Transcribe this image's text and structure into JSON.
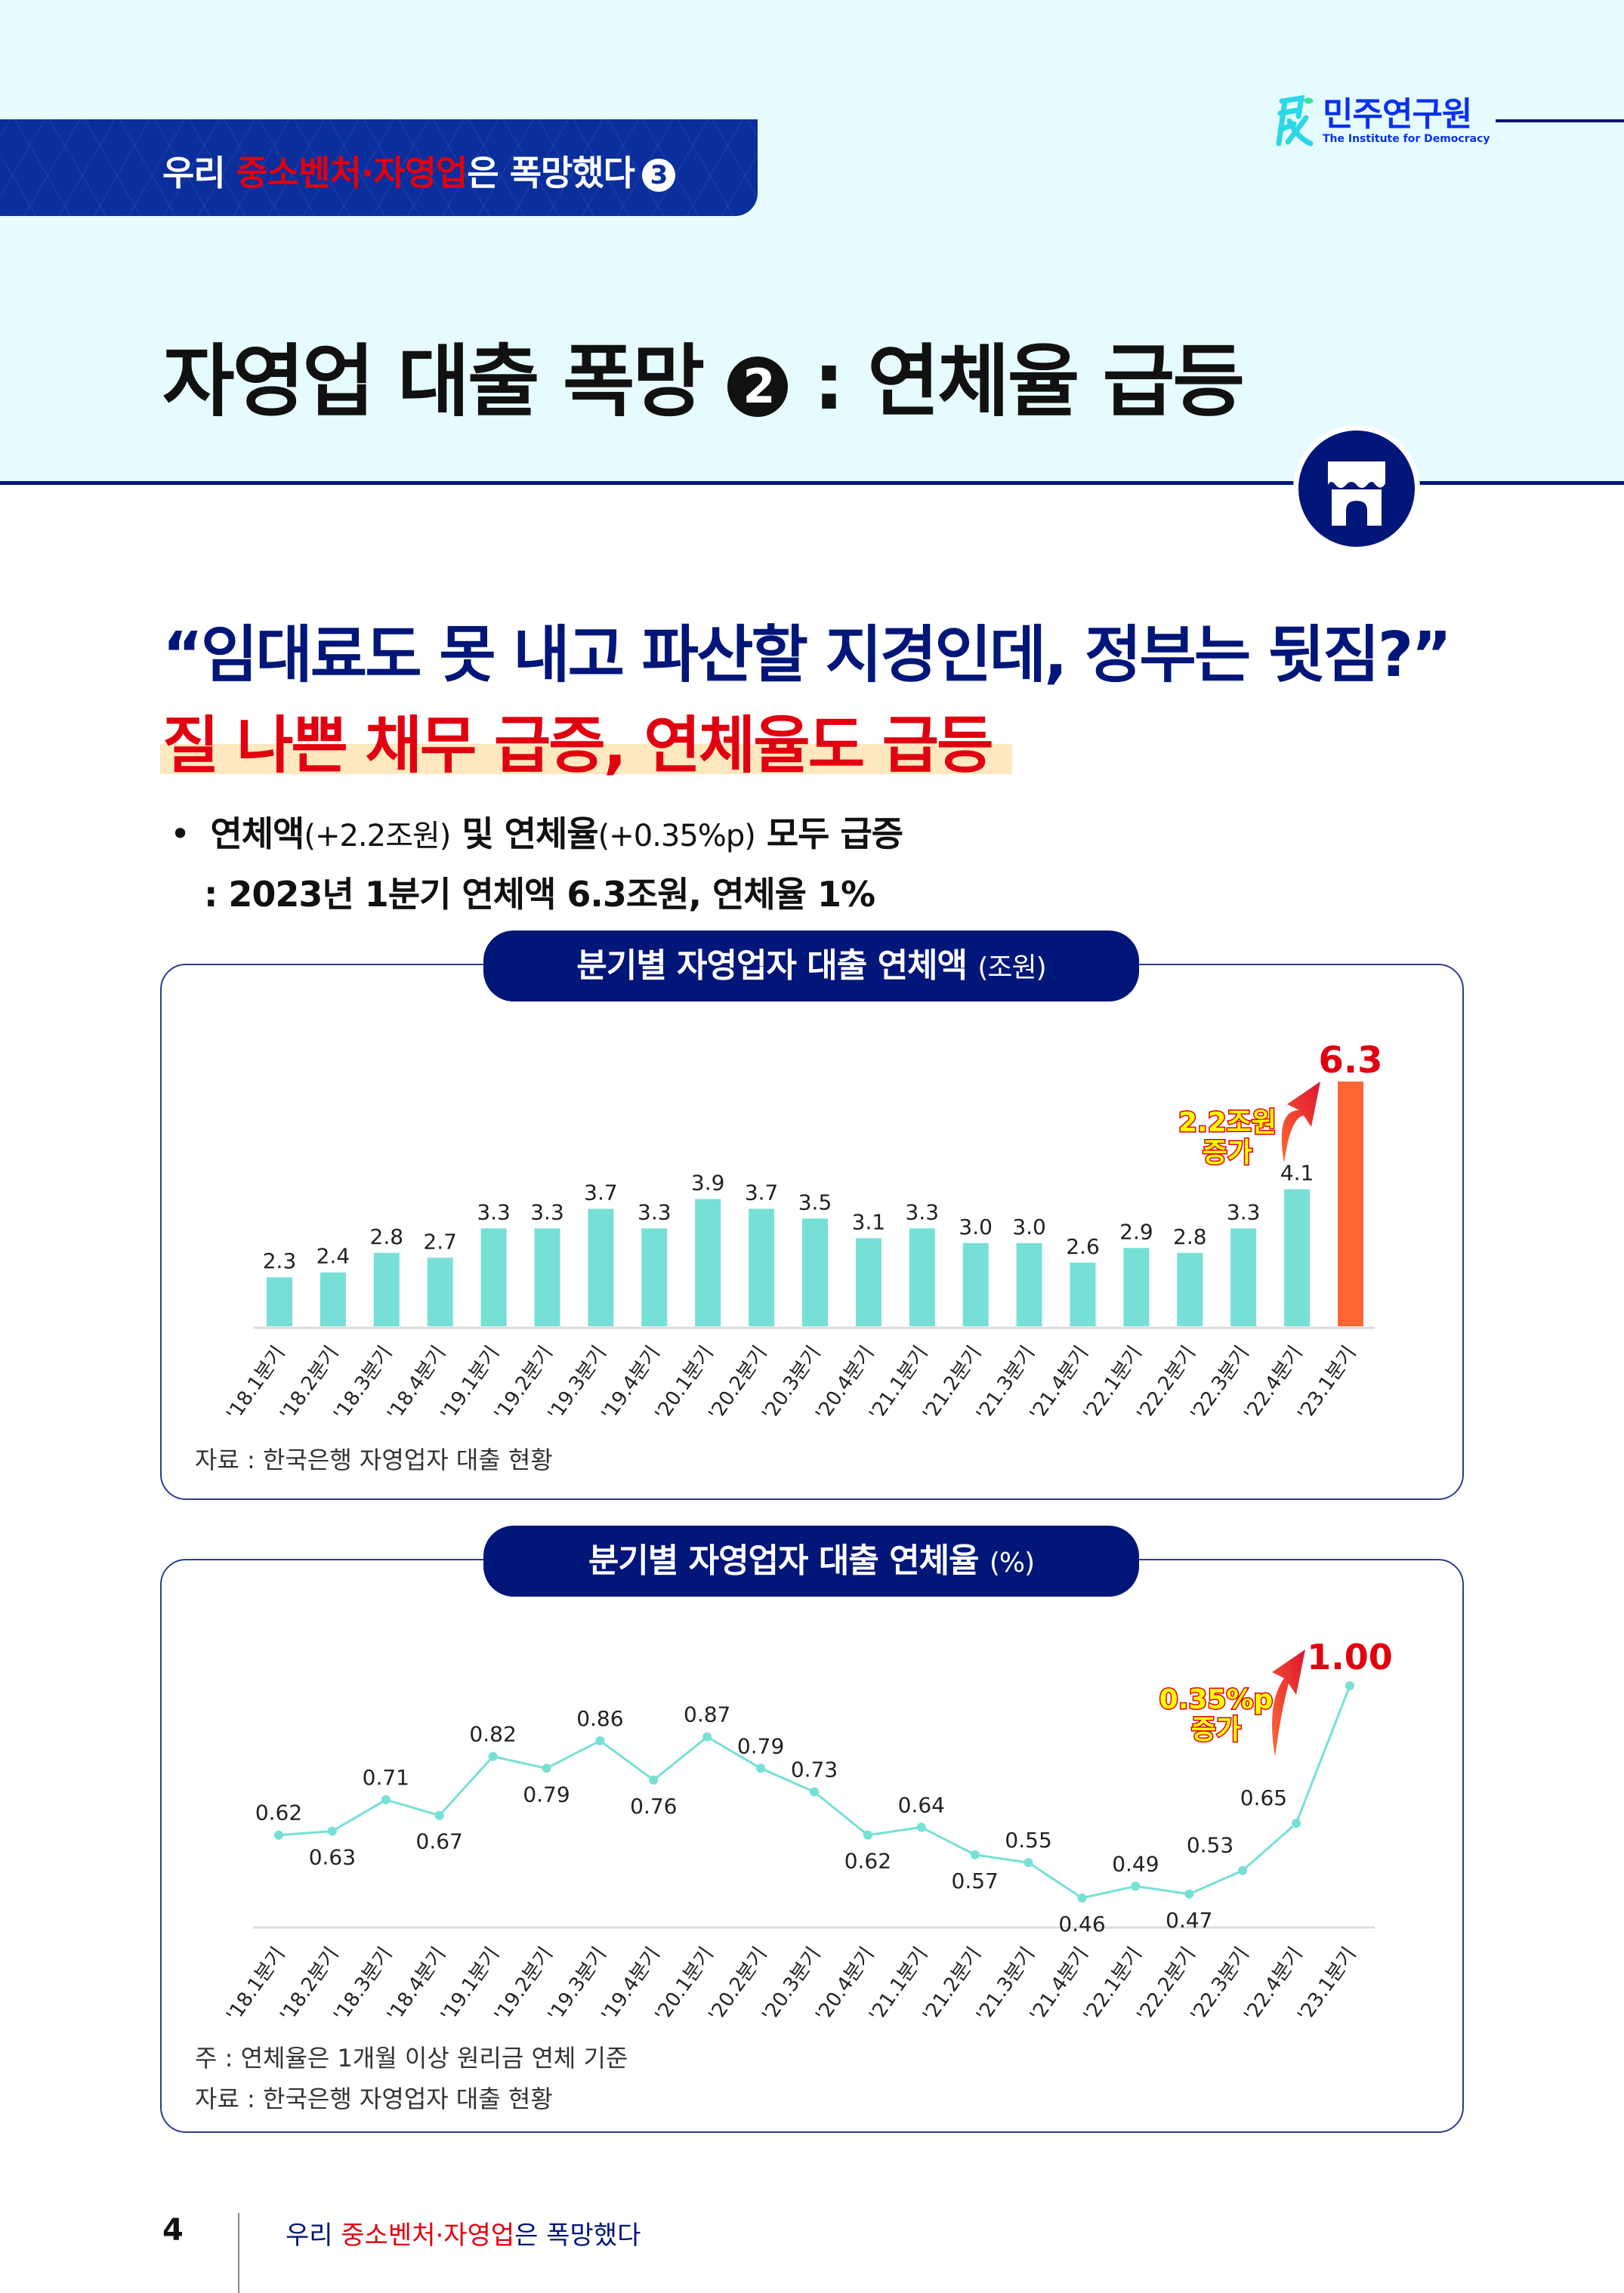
{
  "header": {
    "series_title_prefix": "우리 ",
    "series_title_highlight": "중소벤처·자영업",
    "series_title_suffix": "은 폭망했다",
    "series_number": "3",
    "logo_ko": "민주연구원",
    "logo_en": "The Institute for Democracy",
    "logo_icon": "min-character-icon",
    "page_title_part1": "자영업 대출 폭망",
    "page_title_number": "2",
    "page_title_part2": ": 연체율 급등",
    "badge_icon": "storefront-icon"
  },
  "main": {
    "quote": "“임대료도 못 내고 파산할 지경인데, 정부는 뒷짐?”",
    "headline": "질 나쁜 채무 급증, 연체율도 급등",
    "bullet_marker": "•",
    "bullet_line1_a": "연체액",
    "bullet_line1_b": "(+2.2조원)",
    "bullet_line1_c": " 및 연체율",
    "bullet_line1_d": "(+0.35%p)",
    "bullet_line1_e": " 모두 급증",
    "bullet_line2": ":  2023년 1분기 연체액 6.3조원, 연체율 1%"
  },
  "colors": {
    "navy": "#011679",
    "red": "#e1000f",
    "teal": "#76e0d6",
    "orange": "#ff6633",
    "callout_yellow": "#ffff00"
  },
  "chart_data": [
    {
      "type": "bar",
      "title": "분기별 자영업자 대출 연체액",
      "unit": "(조원)",
      "categories": [
        "'18.1분기",
        "'18.2분기",
        "'18.3분기",
        "'18.4분기",
        "'19.1분기",
        "'19.2분기",
        "'19.3분기",
        "'19.4분기",
        "'20.1분기",
        "'20.2분기",
        "'20.3분기",
        "'20.4분기",
        "'21.1분기",
        "'21.2분기",
        "'21.3분기",
        "'21.4분기",
        "'22.1분기",
        "'22.2분기",
        "'22.3분기",
        "'22.4분기",
        "'23.1분기"
      ],
      "values": [
        2.3,
        2.4,
        2.8,
        2.7,
        3.3,
        3.3,
        3.7,
        3.3,
        3.9,
        3.7,
        3.5,
        3.1,
        3.3,
        3.0,
        3.0,
        2.6,
        2.9,
        2.8,
        3.3,
        4.1,
        6.3
      ],
      "labels": [
        "2.3",
        "2.4",
        "2.8",
        "2.7",
        "3.3",
        "3.3",
        "3.7",
        "3.3",
        "3.9",
        "3.7",
        "3.5",
        "3.1",
        "3.3",
        "3.0",
        "3.0",
        "2.6",
        "2.9",
        "2.8",
        "3.3",
        "4.1",
        "6.3"
      ],
      "highlight_index": 20,
      "ylim": [
        1.3,
        6.3
      ],
      "xlabel": "",
      "ylabel": "",
      "grid": false,
      "callout": [
        "2.2조원",
        "증가"
      ],
      "source": "자료 : 한국은행 자영업자 대출 현황"
    },
    {
      "type": "line",
      "title": "분기별 자영업자 대출 연체율",
      "unit": "(%)",
      "categories": [
        "'18.1분기",
        "'18.2분기",
        "'18.3분기",
        "'18.4분기",
        "'19.1분기",
        "'19.2분기",
        "'19.3분기",
        "'19.4분기",
        "'20.1분기",
        "'20.2분기",
        "'20.3분기",
        "'20.4분기",
        "'21.1분기",
        "'21.2분기",
        "'21.3분기",
        "'21.4분기",
        "'22.1분기",
        "'22.2분기",
        "'22.3분기",
        "'22.4분기",
        "'23.1분기"
      ],
      "values": [
        0.62,
        0.63,
        0.71,
        0.67,
        0.82,
        0.79,
        0.86,
        0.76,
        0.87,
        0.79,
        0.73,
        0.62,
        0.64,
        0.57,
        0.55,
        0.46,
        0.49,
        0.47,
        0.53,
        0.65,
        1.0
      ],
      "labels": [
        "0.62",
        "0.63",
        "0.71",
        "0.67",
        "0.82",
        "0.79",
        "0.86",
        "0.76",
        "0.87",
        "0.79",
        "0.73",
        "0.62",
        "0.64",
        "0.57",
        "0.55",
        "0.46",
        "0.49",
        "0.47",
        "0.53",
        "0.65",
        "1.00"
      ],
      "label_pos": [
        "above",
        "below",
        "above",
        "below",
        "above",
        "below",
        "above",
        "below",
        "above",
        "above",
        "above",
        "below",
        "above",
        "below",
        "above",
        "below",
        "above",
        "below",
        "left",
        "left",
        "above"
      ],
      "highlight_index": 20,
      "ylim": [
        0.2,
        1.0
      ],
      "xlabel": "",
      "ylabel": "",
      "grid": false,
      "callout": [
        "0.35%p",
        "증가"
      ],
      "note": "주 : 연체율은 1개월 이상 원리금 연체 기준",
      "source": "자료 : 한국은행 자영업자 대출 현황"
    }
  ],
  "footer": {
    "page_number": "4",
    "text_prefix": "우리 ",
    "text_highlight": "중소벤처·자영업",
    "text_suffix": "은 폭망했다"
  }
}
